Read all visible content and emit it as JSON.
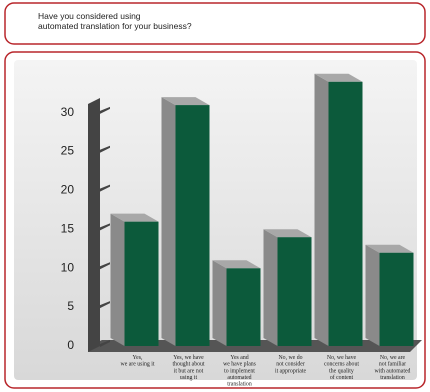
{
  "chart_data": {
    "type": "bar3d",
    "title": "Have you considered using\nautomated translation for your business?",
    "categories": [
      "Yes,\nwe are using it",
      "Yes, we have\nthought about\nit but are not\nusing it",
      "Yes and\nwe have plans\nto implement\nautomated\ntranslation",
      "No, we do\nnot consider\nit appropriate",
      "No, we have\nconcerns about\nthe quality\nof content",
      "No, we are\nnot familiar\nwith automated\ntranslation"
    ],
    "values": [
      16,
      31,
      10,
      14,
      34,
      12
    ],
    "color": "#0c5a3b",
    "ylim": [
      0,
      35
    ],
    "yticks": [
      0,
      5,
      10,
      15,
      20,
      25,
      30
    ]
  }
}
